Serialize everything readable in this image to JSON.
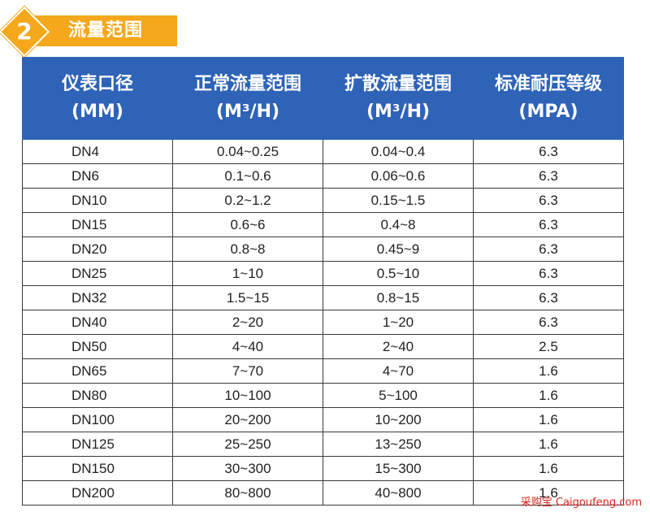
{
  "section": {
    "number": "2",
    "title": "流量范围"
  },
  "table": {
    "headers": [
      {
        "line1": "仪表口径",
        "line2": "(MM)"
      },
      {
        "line1": "正常流量范围",
        "line2": "(M³/H)"
      },
      {
        "line1": "扩散流量范围",
        "line2": "(M³/H)"
      },
      {
        "line1": "标准耐压等级",
        "line2": "(MPA)"
      }
    ],
    "rows": [
      [
        "DN4",
        "0.04~0.25",
        "0.04~0.4",
        "6.3"
      ],
      [
        "DN6",
        "0.1~0.6",
        "0.06~0.6",
        "6.3"
      ],
      [
        "DN10",
        "0.2~1.2",
        "0.15~1.5",
        "6.3"
      ],
      [
        "DN15",
        "0.6~6",
        "0.4~8",
        "6.3"
      ],
      [
        "DN20",
        "0.8~8",
        "0.45~9",
        "6.3"
      ],
      [
        "DN25",
        "1~10",
        "0.5~10",
        "6.3"
      ],
      [
        "DN32",
        "1.5~15",
        "0.8~15",
        "6.3"
      ],
      [
        "DN40",
        "2~20",
        "1~20",
        "6.3"
      ],
      [
        "DN50",
        "4~40",
        "2~40",
        "2.5"
      ],
      [
        "DN65",
        "7~70",
        "4~70",
        "1.6"
      ],
      [
        "DN80",
        "10~100",
        "5~100",
        "1.6"
      ],
      [
        "DN100",
        "20~200",
        "10~200",
        "1.6"
      ],
      [
        "DN125",
        "25~250",
        "13~250",
        "1.6"
      ],
      [
        "DN150",
        "30~300",
        "15~300",
        "1.6"
      ],
      [
        "DN200",
        "80~800",
        "40~800",
        "1.6"
      ]
    ]
  },
  "watermark": "采购宝 Caigoufeng.com",
  "colors": {
    "header_bg": "#2e63b7",
    "badge": "#f5a81c",
    "watermark": "#e0231c"
  }
}
